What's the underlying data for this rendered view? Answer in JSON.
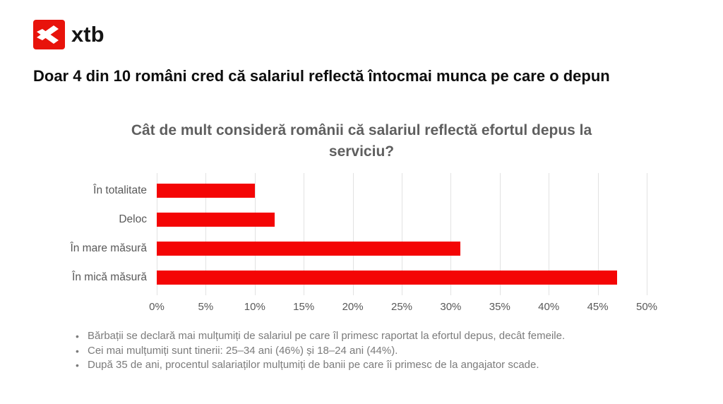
{
  "brand": {
    "logo_text": "xtb",
    "logo_red": "#e8130b",
    "logo_mark": "xtb-x-arrow-mark"
  },
  "page_title": "Doar 4 din 10 români cred că salariul reflectă întocmai munca pe care o depun",
  "chart_data": {
    "type": "bar",
    "orientation": "horizontal",
    "title": "Cât de mult consideră românii că salariul reflectă efortul depus la serviciu?",
    "categories": [
      "În totalitate",
      "Deloc",
      "În mare măsură",
      "În mică măsură"
    ],
    "values": [
      10,
      12,
      31,
      47
    ],
    "unit": "%",
    "xlim": [
      0,
      50
    ],
    "tick_values": [
      0,
      5,
      10,
      15,
      20,
      25,
      30,
      35,
      40,
      45,
      50
    ],
    "ticks": [
      "0%",
      "5%",
      "10%",
      "15%",
      "20%",
      "25%",
      "30%",
      "35%",
      "40%",
      "45%",
      "50%"
    ],
    "bar_color": "#f40505",
    "gridline_color": "#e2e2e2",
    "grid": true,
    "legend": false,
    "xlabel": "",
    "ylabel": ""
  },
  "footer": {
    "bullets": [
      "Bărbații se declară mai mulțumiți de salariul pe care îl primesc raportat la efortul depus, decât femeile.",
      "Cei mai mulțumiți sunt tinerii: 25–34 ani (46%) și 18–24 ani (44%).",
      "După 35 de ani, procentul salariaților mulțumiți de banii pe care îi primesc de la angajator scade."
    ]
  }
}
